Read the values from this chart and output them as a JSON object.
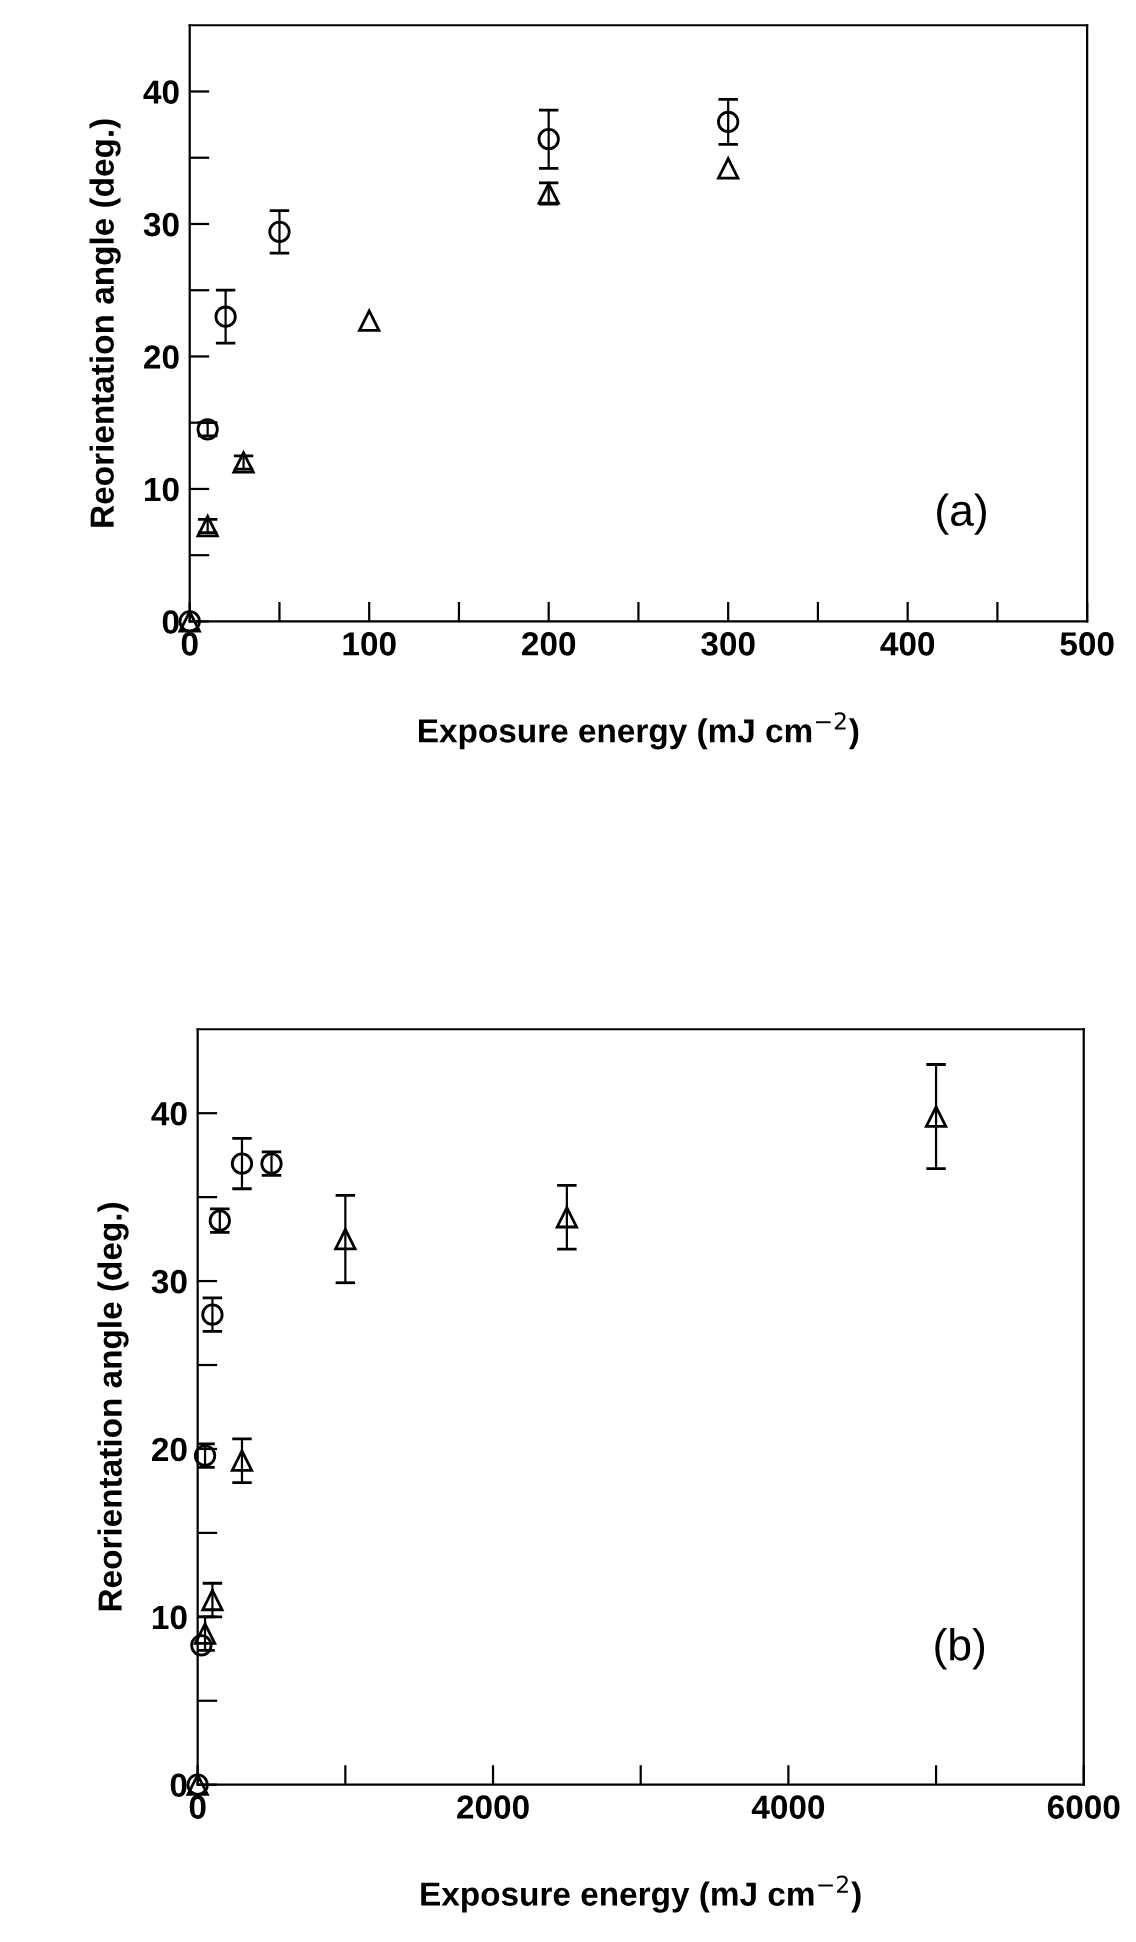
{
  "chart_data": [
    {
      "type": "scatter",
      "xlabel": "Exposure energy (mJ cm$^{−2}$)",
      "ylabel": "Reorientation angle (deg.)",
      "annotations": [
        "(a)"
      ],
      "xlim": [
        0,
        500
      ],
      "xticks": [
        0,
        {
          "value": 50,
          "label": null
        },
        100,
        {
          "value": 150,
          "label": null
        },
        200,
        {
          "value": 250,
          "label": null
        },
        300,
        {
          "value": 350,
          "label": null
        },
        400,
        {
          "value": 450,
          "label": null
        },
        500
      ],
      "ylim": [
        0,
        45
      ],
      "yticks": [
        0,
        {
          "value": 5,
          "label": null
        },
        10,
        {
          "value": 15,
          "label": null
        },
        20,
        {
          "value": 25,
          "label": null
        },
        30,
        {
          "value": 35,
          "label": null
        },
        40
      ],
      "grid": false,
      "legend": false,
      "series": [
        {
          "color": "#000000",
          "marker": "circle",
          "x": [
            0,
            10,
            20,
            50,
            200,
            300
          ],
          "values": [
            0,
            14.5,
            23,
            29.4,
            36.4,
            37.7
          ],
          "errors": [
            null,
            0.5,
            2,
            1.6,
            2.2,
            1.7
          ]
        },
        {
          "color": "#000000",
          "marker": "triangle",
          "x": [
            0,
            10,
            30,
            100,
            200,
            300
          ],
          "values": [
            0,
            7.2,
            12,
            22.7,
            32.3,
            34.2
          ],
          "errors": [
            null,
            0.5,
            0.5,
            null,
            0.8,
            null
          ]
        }
      ]
    },
    {
      "type": "scatter",
      "xlabel": "Exposure energy (mJ cm$^{−2}$)",
      "ylabel": "Reorientation angle (deg.)",
      "annotations": [
        "(b)"
      ],
      "xlim": [
        0,
        6000
      ],
      "xticks": [
        0,
        {
          "value": 1000,
          "label": null
        },
        2000,
        {
          "value": 3000,
          "label": null
        },
        4000,
        {
          "value": 5000,
          "label": null
        },
        6000
      ],
      "ylim": [
        0,
        45
      ],
      "yticks": [
        0,
        {
          "value": 5,
          "label": null
        },
        10,
        {
          "value": 15,
          "label": null
        },
        20,
        {
          "value": 25,
          "label": null
        },
        30,
        {
          "value": 35,
          "label": null
        },
        40
      ],
      "grid": false,
      "legend": false,
      "series": [
        {
          "color": "#000000",
          "marker": "circle",
          "x": [
            0,
            25,
            50,
            100,
            150,
            300,
            500
          ],
          "values": [
            0,
            8.3,
            19.6,
            28,
            33.6,
            37,
            37
          ],
          "errors": [
            null,
            null,
            0.7,
            1,
            0.7,
            1.5,
            0.7
          ]
        },
        {
          "color": "#000000",
          "marker": "triangle",
          "x": [
            0,
            50,
            100,
            300,
            1000,
            2500,
            5000
          ],
          "values": [
            0,
            9,
            11,
            19.3,
            32.5,
            33.8,
            39.8
          ],
          "errors": [
            null,
            1,
            1,
            1.3,
            2.6,
            1.9,
            3.1
          ]
        }
      ]
    }
  ]
}
